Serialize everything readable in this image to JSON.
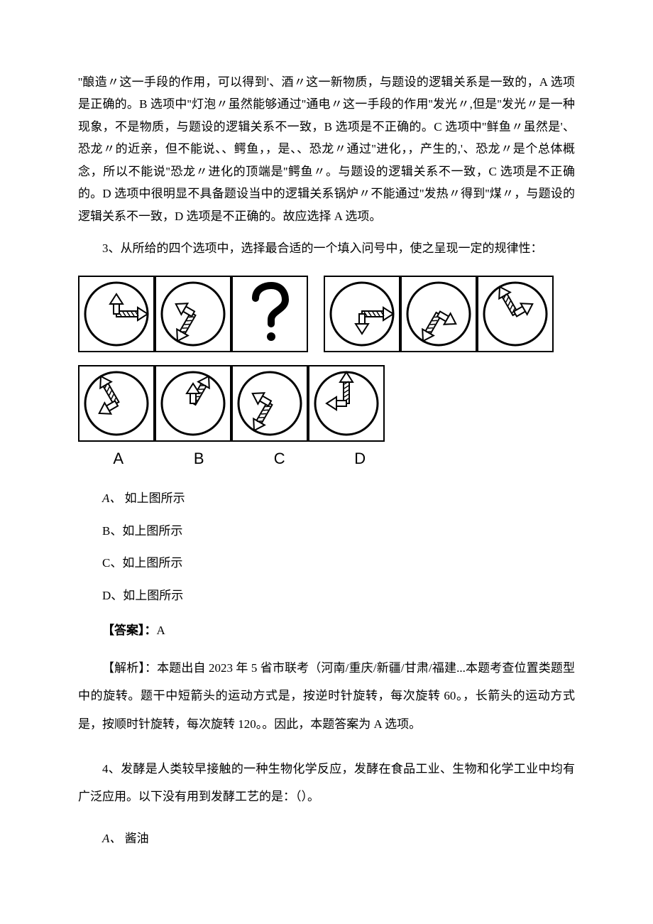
{
  "colors": {
    "background": "#ffffff",
    "text": "#000000",
    "stroke": "#000000"
  },
  "explanation_q2": "''酿造〃这一手段的作用，可以得到'、酒〃这一新物质，与题设的逻辑关系是一致的，A 选项是正确的。B 选项中''灯泡〃虽然能够通过''通电〃这一手段的作用''发光〃,但是''发光〃是一种现象，不是物质，与题设的逻辑关系不一致，B 选项是不正确的。C 选项中''鲜鱼〃虽然是'、恐龙〃的近亲，但不能说、、鳄鱼，，是、、恐龙〃通过''进化，，产生的,'、恐龙〃是个总体概念，所以不能说''恐龙〃进化的顶端是''鳄鱼〃。与题设的逻辑关系不一致，C 选项是不正确的。D 选项中很明显不具备题设当中的逻辑关系锅炉〃不能通过''发热〃得到''煤〃，与题设的逻辑关系不一致，D 选项是不正确的。故应选择 A 选项。",
  "q3": {
    "number": "3、",
    "stem": "从所给的四个选项中，选择最合适的一个填入问号中，使之呈现一定的规律性：",
    "option_labels": [
      "A",
      "B",
      "C",
      "D"
    ],
    "options": {
      "A": "如上图所示",
      "B": "如上图所示",
      "C": "如上图所示",
      "D": "如上图所示"
    },
    "option_prefix": {
      "A": "A、",
      "B": "B、",
      "C": "C、",
      "D": "D、"
    },
    "answer_label": "【答案】：",
    "answer": "A",
    "analysis_label": "【解析】：",
    "analysis": "本题出自 2023 年 5 省市联考（河南/重庆/新疆/甘肃/福建...本题考查位置类题型中的旋转。题干中短箭头的运动方式是，按逆时针旋转，每次旋转 60。，长箭头的运动方式是，按顺时针旋转，每次旋转 120。。因此，本题答案为 A 选项。",
    "figure": {
      "circle_r": 44,
      "stroke_w_circle": 3,
      "stroke_w_arrow": 3,
      "sequence_small_angles_deg": [
        270,
        210,
        null,
        90,
        30,
        330
      ],
      "sequence_long_angles_deg": [
        0,
        120,
        null,
        0,
        120,
        240
      ],
      "sequence_qmark_index": 2,
      "options_small_angles_deg": [
        150,
        270,
        210,
        180
      ],
      "options_long_angles_deg": [
        240,
        300,
        120,
        270
      ]
    }
  },
  "q4": {
    "number": "4、",
    "stem": "发酵是人类较早接触的一种生物化学反应，发酵在食品工业、生物和化学工业中均有广泛应用。以下没有用到发酵工艺的是：（）。",
    "optionA_prefix": "A、",
    "optionA": "酱油"
  }
}
